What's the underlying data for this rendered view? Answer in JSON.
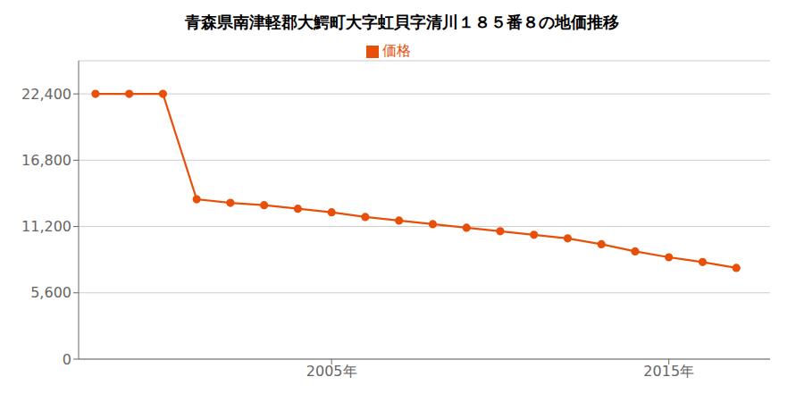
{
  "chart_data": {
    "type": "line",
    "title": "青森県南津軽郡大鰐町大字虹貝字清川１８５番８の地価推移",
    "x": [
      1998,
      1999,
      2000,
      2001,
      2002,
      2003,
      2004,
      2005,
      2006,
      2007,
      2008,
      2009,
      2010,
      2011,
      2012,
      2013,
      2014,
      2015,
      2016,
      2017
    ],
    "series": [
      {
        "name": "価格",
        "color": "#e8500a",
        "values": [
          22400,
          22400,
          22400,
          13500,
          13200,
          13000,
          12700,
          12400,
          12000,
          11700,
          11400,
          11100,
          10800,
          10500,
          10200,
          9700,
          9100,
          8600,
          8200,
          7700
        ]
      }
    ],
    "xlim": [
      1997.5,
      2018
    ],
    "xticks": [
      {
        "value": 2005,
        "label": "2005年"
      },
      {
        "value": 2015,
        "label": "2015年"
      }
    ],
    "ylim": [
      0,
      25200
    ],
    "yticks": [
      0,
      {
        "value": 5600,
        "label": "5,600"
      },
      {
        "value": 11200,
        "label": "11,200"
      },
      {
        "value": 16800,
        "label": "16,800"
      },
      {
        "value": 22400,
        "label": "22,400"
      }
    ],
    "grid": true,
    "legend": "top",
    "marker": "circle"
  }
}
